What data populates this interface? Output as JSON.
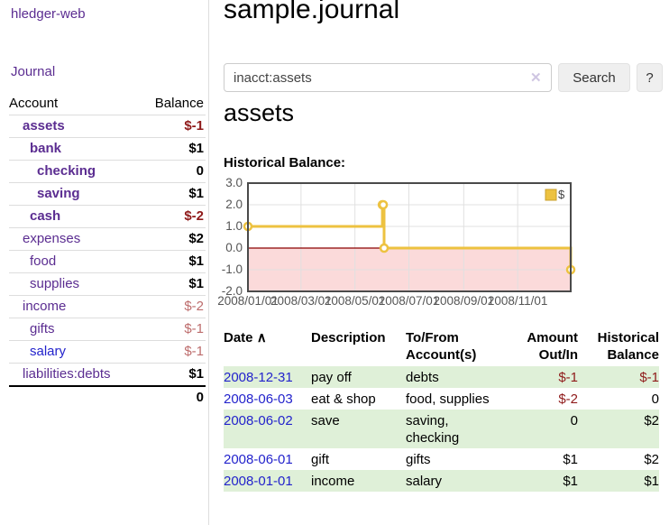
{
  "app": {
    "brand": "hledger-web",
    "nav_journal": "Journal"
  },
  "sidebar": {
    "header": {
      "account": "Account",
      "balance": "Balance"
    },
    "accounts": [
      {
        "label": "assets",
        "depth": 0,
        "bold": true,
        "balance": "$-1",
        "balance_style": "strong"
      },
      {
        "label": "bank",
        "depth": 1,
        "bold": true,
        "balance": "$1",
        "balance_style": "normal"
      },
      {
        "label": "checking",
        "depth": 2,
        "bold": true,
        "balance": "0",
        "balance_style": "normal"
      },
      {
        "label": "saving",
        "depth": 2,
        "bold": true,
        "balance": "$1",
        "balance_style": "normal"
      },
      {
        "label": "cash",
        "depth": 1,
        "bold": true,
        "balance": "$-2",
        "balance_style": "strong"
      },
      {
        "label": "expenses",
        "depth": 0,
        "bold": false,
        "balance": "$2",
        "balance_style": "normal"
      },
      {
        "label": "food",
        "depth": 1,
        "bold": false,
        "balance": "$1",
        "balance_style": "normal"
      },
      {
        "label": "supplies",
        "depth": 1,
        "bold": false,
        "balance": "$1",
        "balance_style": "normal"
      },
      {
        "label": "income",
        "depth": 0,
        "bold": false,
        "balance": "$-2",
        "balance_style": "muted"
      },
      {
        "label": "gifts",
        "depth": 1,
        "bold": false,
        "balance": "$-1",
        "balance_style": "muted"
      },
      {
        "label": "salary",
        "depth": 1,
        "bold": false,
        "balance": "$-1",
        "balance_style": "muted",
        "link_color": "blue"
      },
      {
        "label": "liabilities:debts",
        "depth": 0,
        "bold": false,
        "balance": "$1",
        "balance_style": "normal"
      }
    ],
    "total": "0"
  },
  "header": {
    "title": "sample.journal"
  },
  "search": {
    "value": "inacct:assets",
    "clear_icon": "✕",
    "button": "Search",
    "help_button": "?"
  },
  "register": {
    "heading": "assets",
    "chart_label": "Historical Balance:",
    "table": {
      "headers": {
        "date": "Date",
        "sort_arrow": "∧",
        "description": "Description",
        "accounts": "To/From Account(s)",
        "amount": "Amount Out/In",
        "balance": "Historical Balance"
      },
      "rows": [
        {
          "date": "2008-12-31",
          "description": "pay off",
          "accounts": "debts",
          "amount": "$-1",
          "balance": "$-1",
          "amount_neg": true,
          "balance_neg": true
        },
        {
          "date": "2008-06-03",
          "description": "eat & shop",
          "accounts": "food, supplies",
          "amount": "$-2",
          "balance": "0",
          "amount_neg": true,
          "balance_neg": false
        },
        {
          "date": "2008-06-02",
          "description": "save",
          "accounts": "saving, checking",
          "amount": "0",
          "balance": "$2",
          "amount_neg": false,
          "balance_neg": false
        },
        {
          "date": "2008-06-01",
          "description": "gift",
          "accounts": "gifts",
          "amount": "$1",
          "balance": "$2",
          "amount_neg": false,
          "balance_neg": false
        },
        {
          "date": "2008-01-01",
          "description": "income",
          "accounts": "salary",
          "amount": "$1",
          "balance": "$1",
          "amount_neg": false,
          "balance_neg": false
        }
      ]
    }
  },
  "chart_data": {
    "type": "line",
    "title": "Historical Balance",
    "step": true,
    "series": [
      {
        "name": "$",
        "color": "#edc240",
        "points": [
          [
            "2008-01-01",
            1
          ],
          [
            "2008-06-01",
            2
          ],
          [
            "2008-06-02",
            2
          ],
          [
            "2008-06-03",
            0
          ],
          [
            "2008-12-31",
            -1
          ]
        ]
      }
    ],
    "x_ticks": [
      "2008/01/01",
      "2008/03/01",
      "2008/05/01",
      "2008/07/01",
      "2008/09/01",
      "2008/11/01"
    ],
    "y_ticks": [
      3.0,
      2.0,
      1.0,
      0.0,
      -1.0,
      -2.0
    ],
    "xlim": [
      "2008-01-01",
      "2008-12-31"
    ],
    "ylim": [
      -2,
      3
    ],
    "grid": true,
    "legend_position": "top-right",
    "zero_line_color": "#8b0000",
    "negative_band_color": "#fbdada",
    "grid_color": "#e0e0e0",
    "border_color": "#4a4a4a",
    "tick_label_color": "#555555"
  },
  "colors": {
    "accent_purple": "#5b2d91",
    "link_blue": "#2323cc",
    "negative_strong": "#8f1a1a",
    "negative_muted": "#bd6c6c",
    "row_stripe_green": "#dff0d8",
    "button_bg": "#efefef",
    "series_yellow": "#edc240"
  }
}
